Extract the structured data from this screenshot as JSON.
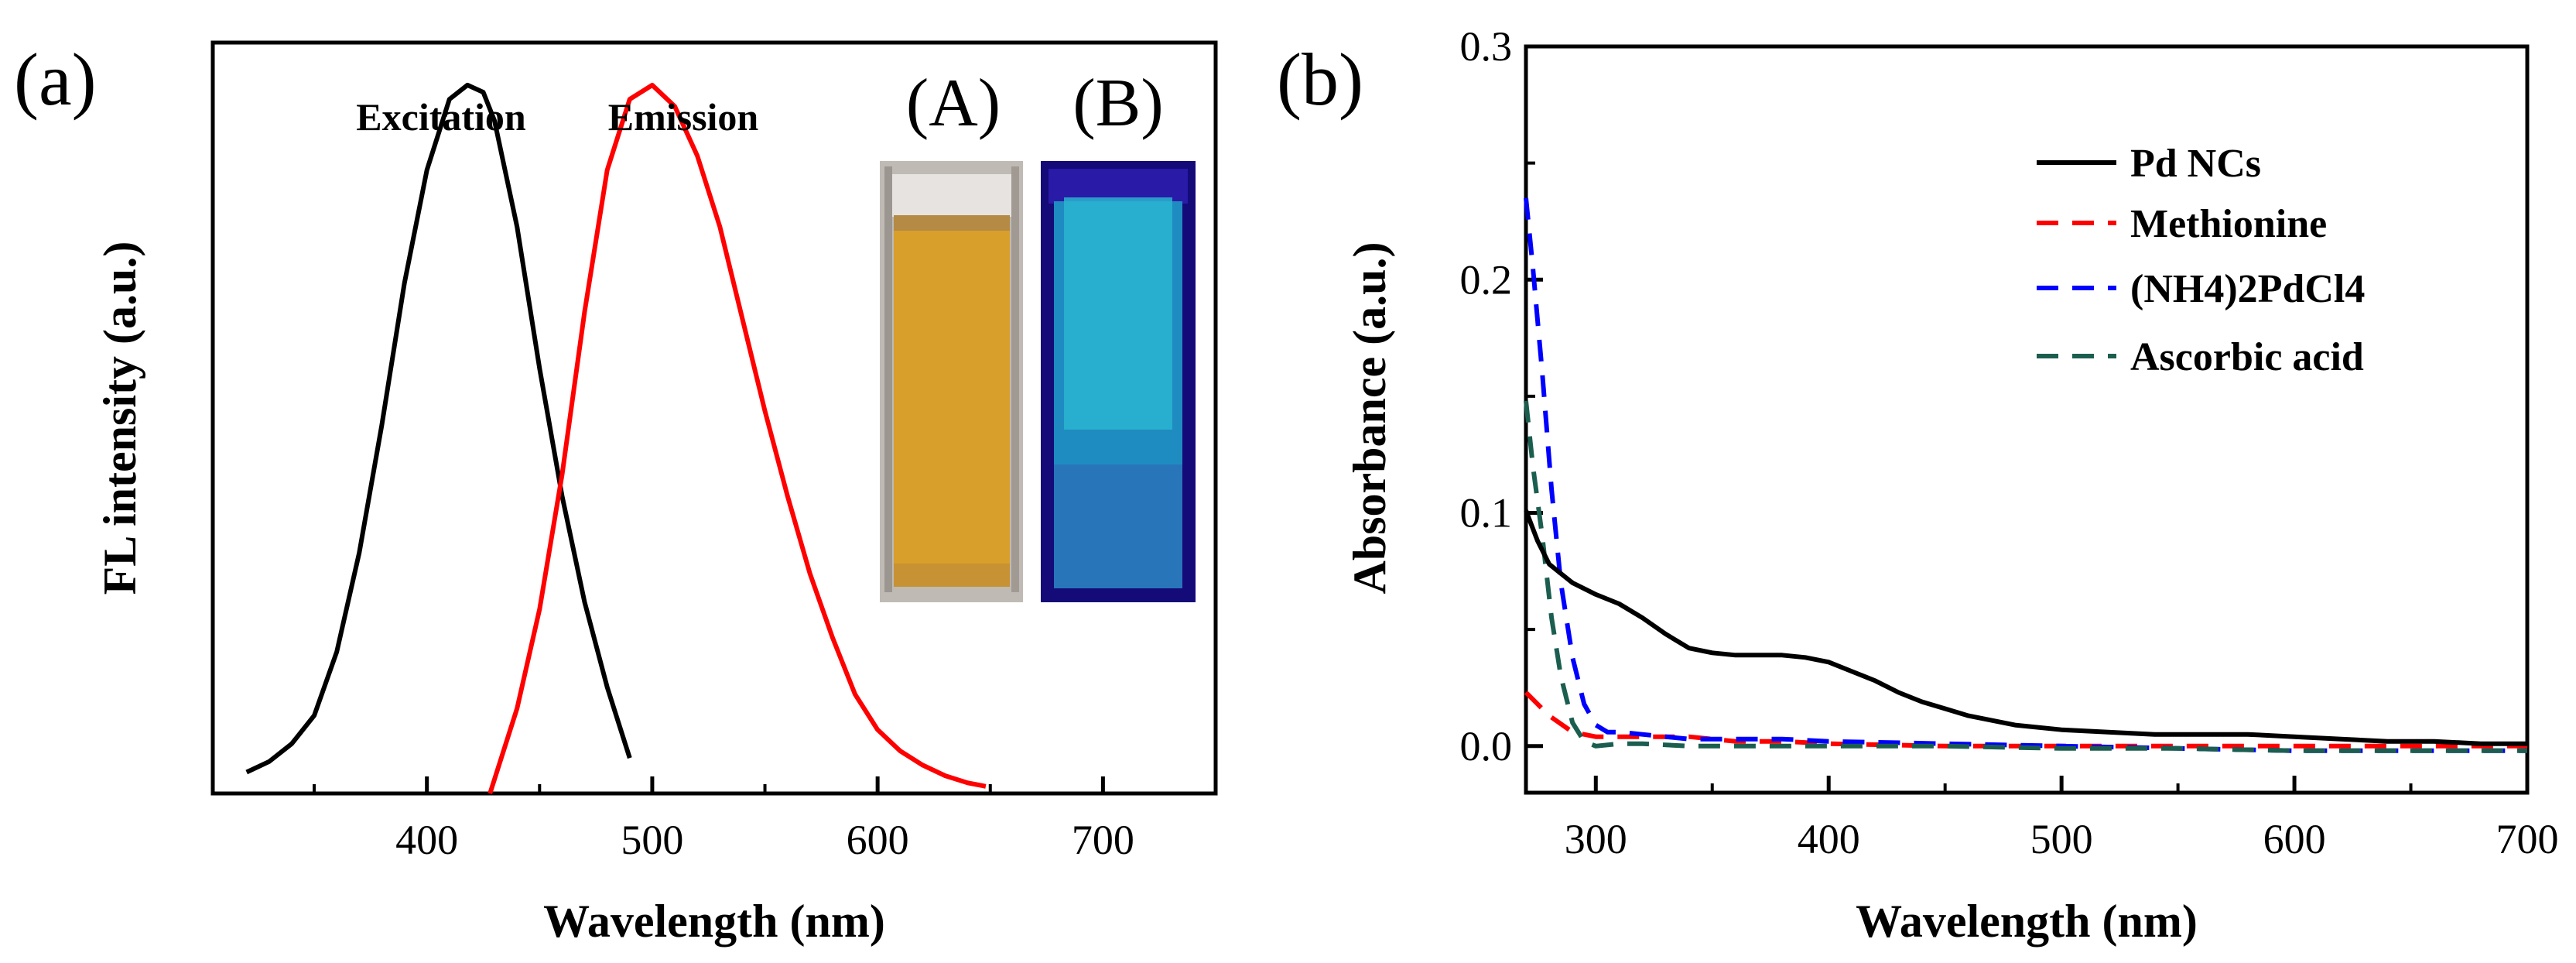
{
  "panels": [
    {
      "id": "a",
      "panel_label": "(a)",
      "chart_data": {
        "type": "line",
        "title": "",
        "xlabel": "Wavelength (nm)",
        "ylabel": "FL intensity (a.u.)",
        "xlim": [
          305,
          750
        ],
        "ylim": [
          0,
          1.06
        ],
        "xticks": [
          400,
          500,
          600,
          700
        ],
        "yticks_shown": false,
        "grid": false,
        "legend": "none",
        "series": [
          {
            "name": "Excitation",
            "color": "#000000",
            "dash": "solid",
            "x": [
              320,
              330,
              340,
              350,
              360,
              370,
              380,
              390,
              400,
              410,
              418,
              425,
              430,
              440,
              450,
              460,
              470,
              480,
              490
            ],
            "y": [
              0.03,
              0.045,
              0.07,
              0.11,
              0.2,
              0.34,
              0.52,
              0.72,
              0.88,
              0.98,
              1.0,
              0.99,
              0.95,
              0.8,
              0.6,
              0.42,
              0.27,
              0.15,
              0.05
            ]
          },
          {
            "name": "Emission",
            "color": "#ff0000",
            "dash": "solid",
            "x": [
              428,
              440,
              450,
              460,
              470,
              480,
              490,
              500,
              510,
              520,
              530,
              540,
              550,
              560,
              570,
              580,
              590,
              600,
              610,
              620,
              630,
              640,
              648
            ],
            "y": [
              0.0,
              0.12,
              0.26,
              0.45,
              0.68,
              0.88,
              0.98,
              1.0,
              0.97,
              0.9,
              0.8,
              0.67,
              0.54,
              0.42,
              0.31,
              0.22,
              0.14,
              0.09,
              0.06,
              0.04,
              0.025,
              0.015,
              0.01
            ]
          }
        ],
        "annotations": [
          "Excitation",
          "Emission"
        ]
      },
      "inset_photos": [
        {
          "label": "(A)",
          "description_color_top": "#c8c3bd",
          "liquid_color": "#d79e2a"
        },
        {
          "label": "(B)",
          "description_color_top": "#1a0a8c",
          "liquid_color": "#22a5c8"
        }
      ]
    },
    {
      "id": "b",
      "panel_label": "(b)",
      "chart_data": {
        "type": "line",
        "title": "",
        "xlabel": "Wavelength (nm)",
        "ylabel": "Absorbance (a.u.)",
        "xlim": [
          270,
          700
        ],
        "ylim": [
          -0.02,
          0.3
        ],
        "xticks": [
          300,
          400,
          500,
          600,
          700
        ],
        "yticks": [
          0.0,
          0.1,
          0.2,
          0.3
        ],
        "ytick_labels": [
          "0.0",
          "0.1",
          "0.2",
          "0.3"
        ],
        "grid": false,
        "legend": "top-right",
        "series": [
          {
            "name": "Pd NCs",
            "color": "#000000",
            "dash": "solid",
            "x": [
              270,
              275,
              280,
              290,
              300,
              310,
              320,
              330,
              340,
              350,
              360,
              370,
              380,
              390,
              400,
              410,
              420,
              430,
              440,
              450,
              460,
              480,
              500,
              520,
              540,
              560,
              580,
              600,
              620,
              640,
              660,
              680,
              700
            ],
            "y": [
              0.101,
              0.088,
              0.078,
              0.07,
              0.065,
              0.061,
              0.055,
              0.048,
              0.042,
              0.04,
              0.039,
              0.039,
              0.039,
              0.038,
              0.036,
              0.032,
              0.028,
              0.023,
              0.019,
              0.016,
              0.013,
              0.009,
              0.007,
              0.006,
              0.005,
              0.005,
              0.005,
              0.004,
              0.003,
              0.002,
              0.002,
              0.001,
              0.001
            ]
          },
          {
            "name": "Methionine",
            "color": "#ff0000",
            "dash": "dashed",
            "x": [
              270,
              280,
              290,
              300,
              320,
              340,
              360,
              380,
              400,
              450,
              500,
              550,
              600,
              650,
              700
            ],
            "y": [
              0.023,
              0.013,
              0.006,
              0.004,
              0.004,
              0.004,
              0.002,
              0.002,
              0.001,
              0.0,
              0.0,
              0.0,
              0.0,
              0.0,
              0.0
            ]
          },
          {
            "name": "(NH4)2PdCl4",
            "color": "#0000ff",
            "dash": "dashed",
            "x": [
              270,
              273,
              277,
              281,
              285,
              290,
              295,
              300,
              305,
              310,
              320,
              340,
              360,
              380,
              400,
              450,
              500,
              550,
              600,
              650,
              700
            ],
            "y": [
              0.235,
              0.205,
              0.16,
              0.11,
              0.07,
              0.038,
              0.018,
              0.009,
              0.006,
              0.006,
              0.005,
              0.003,
              0.003,
              0.003,
              0.002,
              0.001,
              0.0,
              -0.001,
              -0.002,
              -0.002,
              -0.002
            ]
          },
          {
            "name": "Ascorbic acid",
            "color": "#1b5e4f",
            "dash": "dashed",
            "x": [
              270,
              273,
              277,
              281,
              285,
              290,
              295,
              300,
              310,
              320,
              340,
              360,
              380,
              400,
              450,
              500,
              550,
              600,
              650,
              700
            ],
            "y": [
              0.148,
              0.12,
              0.09,
              0.055,
              0.03,
              0.01,
              0.002,
              0.0,
              0.001,
              0.001,
              0.0,
              0.0,
              0.0,
              0.0,
              0.0,
              -0.001,
              -0.001,
              -0.002,
              -0.002,
              -0.002
            ]
          }
        ],
        "legend_entries": [
          {
            "label": "Pd NCs"
          },
          {
            "label": "Methionine"
          },
          {
            "label": "(NH4)2PdCl4"
          },
          {
            "label": "Ascorbic acid"
          }
        ]
      }
    }
  ]
}
